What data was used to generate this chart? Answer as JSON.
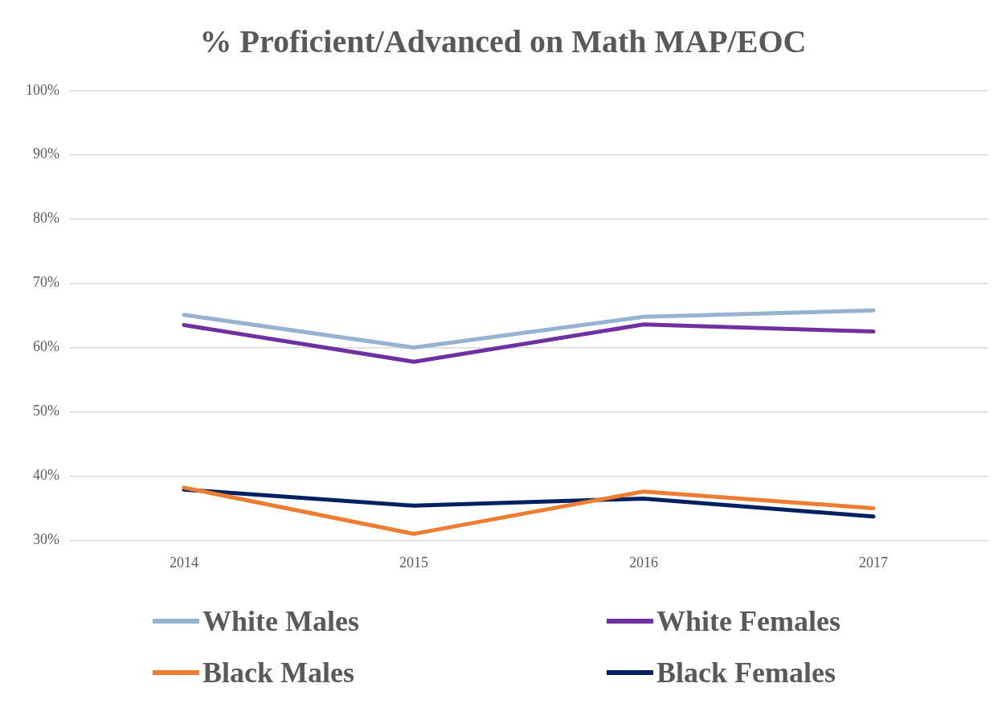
{
  "chart_data": {
    "type": "line",
    "title": "% Proficient/Advanced on Math MAP/EOC",
    "categories": [
      "2014",
      "2015",
      "2016",
      "2017"
    ],
    "series": [
      {
        "name": "White Males",
        "color": "#95b3d0",
        "values": [
          65.1,
          60.0,
          64.8,
          65.8
        ]
      },
      {
        "name": "White Females",
        "color": "#7030a0",
        "values": [
          63.5,
          57.8,
          63.6,
          62.5
        ]
      },
      {
        "name": "Black Males",
        "color": "#ed7d31",
        "values": [
          38.2,
          31.0,
          37.6,
          35.0
        ]
      },
      {
        "name": "Black Females",
        "color": "#002060",
        "values": [
          37.9,
          35.4,
          36.5,
          33.7
        ]
      }
    ],
    "ylim": [
      30,
      100
    ],
    "yticks": [
      {
        "value": 30,
        "label": "30%"
      },
      {
        "value": 40,
        "label": "40%"
      },
      {
        "value": 50,
        "label": "50%"
      },
      {
        "value": 60,
        "label": "60%"
      },
      {
        "value": 70,
        "label": "70%"
      },
      {
        "value": 80,
        "label": "80%"
      },
      {
        "value": 90,
        "label": "90%"
      },
      {
        "value": 100,
        "label": "100%"
      }
    ],
    "grid": "y",
    "legend": "bottom",
    "marker": "none",
    "line_style": "solid"
  }
}
